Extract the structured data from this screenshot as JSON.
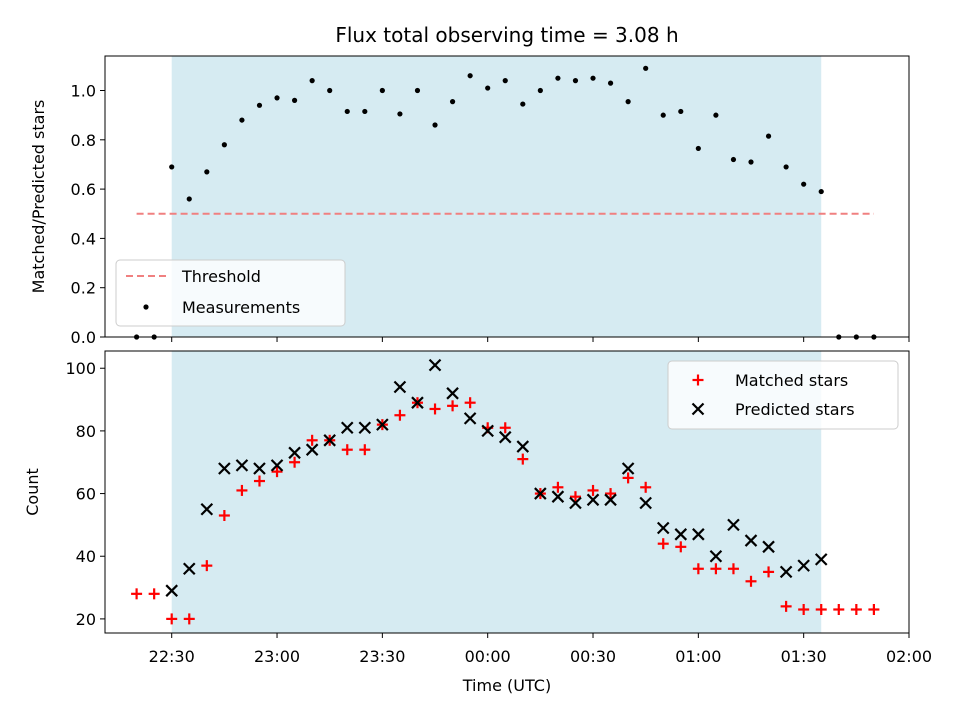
{
  "chart_data": [
    {
      "type": "scatter",
      "title": "Flux total observing time = 3.08 h",
      "xlabel": "",
      "ylabel": "Matched/Predicted stars",
      "xlim": [
        "22:11",
        "02:00"
      ],
      "ylim": [
        0,
        1.14
      ],
      "yticks": [
        0.0,
        0.2,
        0.4,
        0.6,
        0.8,
        1.0
      ],
      "ytick_labels": [
        "0.0",
        "0.2",
        "0.4",
        "0.6",
        "0.8",
        "1.0"
      ],
      "grid": false,
      "legend_position": "lower-left",
      "observing_window": [
        "22:30",
        "01:35"
      ],
      "window_color": "#add8e6",
      "threshold": {
        "name": "Threshold",
        "value": 0.5,
        "x_range": [
          "22:20",
          "01:50"
        ],
        "color": "#f08080",
        "style": "dashed"
      },
      "series": [
        {
          "name": "Measurements",
          "marker": "dot",
          "color": "#000000",
          "times": [
            "22:20",
            "22:25",
            "22:30",
            "22:35",
            "22:40",
            "22:45",
            "22:50",
            "22:55",
            "23:00",
            "23:05",
            "23:10",
            "23:15",
            "23:20",
            "23:25",
            "23:30",
            "23:35",
            "23:40",
            "23:45",
            "23:50",
            "23:55",
            "00:00",
            "00:05",
            "00:10",
            "00:15",
            "00:20",
            "00:25",
            "00:30",
            "00:35",
            "00:40",
            "00:45",
            "00:50",
            "00:55",
            "01:00",
            "01:05",
            "01:10",
            "01:15",
            "01:20",
            "01:25",
            "01:30",
            "01:35",
            "01:40",
            "01:45",
            "01:50"
          ],
          "values": [
            0.0,
            0.0,
            0.69,
            0.56,
            0.67,
            0.78,
            0.88,
            0.94,
            0.97,
            0.96,
            1.04,
            1.0,
            0.915,
            0.915,
            1.0,
            0.905,
            1.0,
            0.86,
            0.955,
            1.06,
            1.01,
            1.04,
            0.945,
            1.0,
            1.05,
            1.04,
            1.05,
            1.03,
            0.955,
            1.09,
            0.9,
            0.915,
            0.765,
            0.9,
            0.72,
            0.71,
            0.815,
            0.69,
            0.62,
            0.59,
            0.0,
            0.0,
            0.0
          ]
        }
      ]
    },
    {
      "type": "scatter",
      "title": "",
      "xlabel": "Time (UTC)",
      "ylabel": "Count",
      "xlim": [
        "22:11",
        "02:00"
      ],
      "ylim": [
        15.5,
        105.5
      ],
      "yticks": [
        20,
        40,
        60,
        80,
        100
      ],
      "ytick_labels": [
        "20",
        "40",
        "60",
        "80",
        "100"
      ],
      "xticks": [
        "22:30",
        "23:00",
        "23:30",
        "00:00",
        "00:30",
        "01:00",
        "01:30",
        "02:00"
      ],
      "xtick_labels": [
        "22:30",
        "23:00",
        "23:30",
        "00:00",
        "00:30",
        "01:00",
        "01:30",
        "02:00"
      ],
      "grid": false,
      "legend_position": "upper-right",
      "observing_window": [
        "22:30",
        "01:35"
      ],
      "window_color": "#add8e6",
      "series": [
        {
          "name": "Matched stars",
          "marker": "plus",
          "color": "#ff0000",
          "times": [
            "22:20",
            "22:25",
            "22:30",
            "22:35",
            "22:40",
            "22:45",
            "22:50",
            "22:55",
            "23:00",
            "23:05",
            "23:10",
            "23:15",
            "23:20",
            "23:25",
            "23:30",
            "23:35",
            "23:40",
            "23:45",
            "23:50",
            "23:55",
            "00:00",
            "00:05",
            "00:10",
            "00:15",
            "00:20",
            "00:25",
            "00:30",
            "00:35",
            "00:40",
            "00:45",
            "00:50",
            "00:55",
            "01:00",
            "01:05",
            "01:10",
            "01:15",
            "01:20",
            "01:25",
            "01:30",
            "01:35",
            "01:40",
            "01:45",
            "01:50"
          ],
          "values": [
            28,
            28,
            20,
            20,
            37,
            53,
            61,
            64,
            67,
            70,
            77,
            77,
            74,
            74,
            82,
            85,
            89,
            87,
            88,
            89,
            81,
            81,
            71,
            60,
            62,
            59,
            61,
            60,
            65,
            62,
            44,
            43,
            36,
            36,
            36,
            32,
            35,
            24,
            23,
            23,
            23,
            23,
            23
          ]
        },
        {
          "name": "Predicted stars",
          "marker": "x",
          "color": "#000000",
          "times": [
            "22:30",
            "22:35",
            "22:40",
            "22:45",
            "22:50",
            "22:55",
            "23:00",
            "23:05",
            "23:10",
            "23:15",
            "23:20",
            "23:25",
            "23:30",
            "23:35",
            "23:40",
            "23:45",
            "23:50",
            "23:55",
            "00:00",
            "00:05",
            "00:10",
            "00:15",
            "00:20",
            "00:25",
            "00:30",
            "00:35",
            "00:40",
            "00:45",
            "00:50",
            "00:55",
            "01:00",
            "01:05",
            "01:10",
            "01:15",
            "01:20",
            "01:25",
            "01:30",
            "01:35"
          ],
          "values": [
            29,
            36,
            55,
            68,
            69,
            68,
            69,
            73,
            74,
            77,
            81,
            81,
            82,
            94,
            89,
            101,
            92,
            84,
            80,
            78,
            75,
            60,
            59,
            57,
            58,
            58,
            68,
            57,
            49,
            47,
            47,
            40,
            50,
            45,
            43,
            35,
            37,
            39
          ]
        }
      ]
    }
  ]
}
